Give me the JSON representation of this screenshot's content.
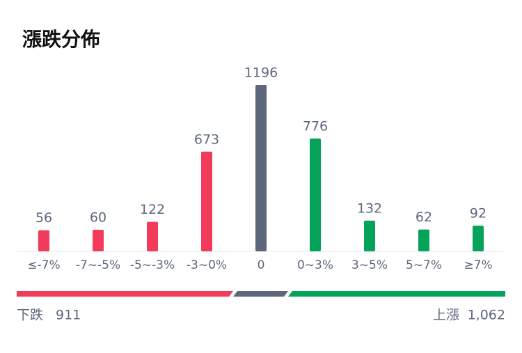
{
  "chart_data": {
    "type": "bar",
    "title": "漲跌分佈",
    "categories": [
      "≤-7%",
      "-7~-5%",
      "-5~-3%",
      "-3~0%",
      "0",
      "0~3%",
      "3~5%",
      "5~7%",
      "≥7%"
    ],
    "values": [
      56,
      60,
      122,
      673,
      1196,
      776,
      132,
      62,
      92
    ],
    "colors": [
      "#f23a5a",
      "#f23a5a",
      "#f23a5a",
      "#f23a5a",
      "#5d677c",
      "#05a35a",
      "#05a35a",
      "#05a35a",
      "#05a35a"
    ],
    "summary": {
      "down_label": "下跌",
      "down_value": 911,
      "up_label": "上漲",
      "up_value": 1062,
      "up_value_label": "1,062"
    }
  }
}
